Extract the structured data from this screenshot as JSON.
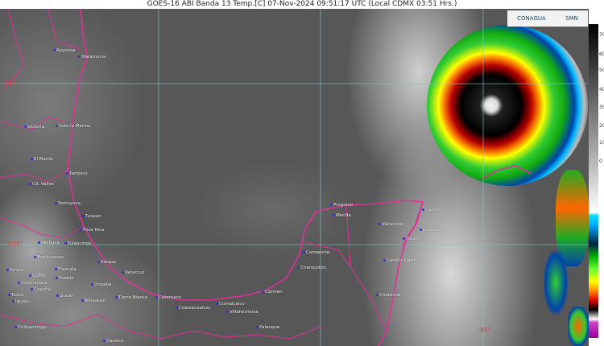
{
  "title": "GOES-16 ABI Banda 13 Temp.[C] 07-Nov-2024 09:51:17 UTC (Local CDMX  03:51 Hrs.)",
  "logos": {
    "conagua": "CONAGUA",
    "smn": "SMN"
  },
  "grid_labels": {
    "lat_25": "+25°",
    "lat_20": "+20°",
    "lon_85": "-85°"
  },
  "colors": {
    "coastline": "#e0309a",
    "grid": "#7fc8c8",
    "city_marker": "#3333cc"
  },
  "colorbar": {
    "ticks": [
      "70",
      "60",
      "50",
      "40",
      "30",
      "20",
      "10",
      "0"
    ]
  },
  "cities": [
    "Reynosa",
    "Matamoros",
    "Victoria",
    "Soto la Marina",
    "El Mante",
    "Tampico",
    "Cd. Valles",
    "Tantoyuca",
    "Tuxpan",
    "Poza Rica",
    "Pachuca",
    "Tulancingo",
    "Teotihuacan",
    "Toluca",
    "CDMX",
    "Tlaxcala",
    "Puebla",
    "Cuernavaca",
    "Cuautla",
    "Taxco",
    "Iguala",
    "Izucar",
    "Xalapa",
    "Veracruz",
    "Orizaba",
    "Tehuacan",
    "Tierra Blanca",
    "Chilpancingo",
    "Oaxaca",
    "Catemaco",
    "Coatzacoalcos",
    "Comalcalco",
    "Villahermosa",
    "Palenque",
    "Carmen",
    "Champoton",
    "Campeche",
    "Progreso",
    "Merida",
    "Valladolid",
    "Cancun",
    "Cozumel",
    "Tulum",
    "Carrillo Puerto",
    "Chetumal"
  ]
}
